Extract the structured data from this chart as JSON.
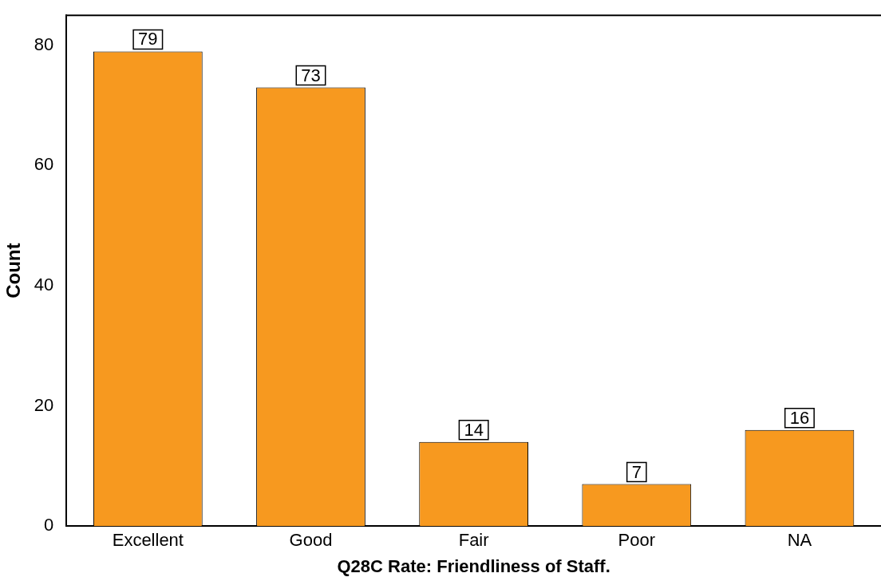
{
  "chart_data": {
    "type": "bar",
    "xlabel": "Q28C Rate: Friendliness of Staff.",
    "ylabel": "Count",
    "categories": [
      "Excellent",
      "Good",
      "Fair",
      "Poor",
      "NA"
    ],
    "values": [
      79,
      73,
      14,
      7,
      16
    ],
    "color": "#f7991f",
    "ylim": [
      0,
      85
    ],
    "yticks": [
      0,
      20,
      40,
      60,
      80
    ],
    "grid": false,
    "legend": false,
    "data_labels": true
  }
}
